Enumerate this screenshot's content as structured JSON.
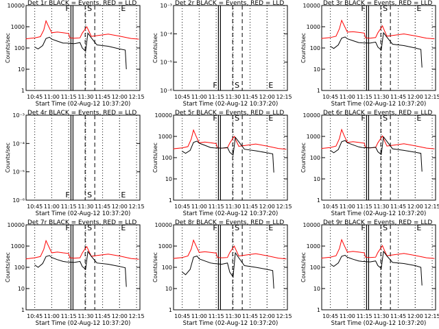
{
  "chart_data": [
    {
      "type": "line",
      "title": "Det 1r BLACK = Events, RED = LLD",
      "xlabel": "Start Time (02-Aug-12 10:37:20)",
      "ylabel": "Counts/sec",
      "x_ticks": [
        "10:45",
        "11:00",
        "11:15",
        "11:30",
        "11:45",
        "12:00",
        "12:15"
      ],
      "y_scale": "log",
      "ylim": [
        1,
        10000
      ],
      "y_ticks": [
        "1",
        "10",
        "100",
        "1000",
        "10000"
      ],
      "markers": {
        "F": "11:17",
        "S": "11:32",
        "E": "12:00"
      },
      "series": [
        {
          "color": "#ff0000",
          "x": [
            "10:37",
            "10:45",
            "10:50",
            "10:53",
            "10:55",
            "10:57",
            "11:00",
            "11:05",
            "11:10",
            "11:15",
            "11:16",
            "11:20",
            "11:25",
            "11:27",
            "11:29",
            "11:31",
            "11:33",
            "11:35",
            "11:40",
            "11:50",
            "12:00",
            "12:10",
            "12:17"
          ],
          "values": [
            270,
            300,
            340,
            700,
            1900,
            1100,
            520,
            560,
            520,
            480,
            300,
            290,
            300,
            500,
            700,
            1000,
            600,
            350,
            380,
            450,
            360,
            280,
            260
          ]
        },
        {
          "color": "#000000",
          "x": [
            "10:45",
            "10:48",
            "10:52",
            "10:55",
            "10:58",
            "11:00",
            "11:05",
            "11:10",
            "11:13",
            "11:20",
            "11:25",
            "11:27",
            "11:30",
            "11:32",
            "11:35",
            "11:40",
            "11:50",
            "12:00",
            "12:05",
            "12:06"
          ],
          "values": [
            110,
            90,
            130,
            280,
            320,
            260,
            210,
            170,
            170,
            160,
            180,
            100,
            70,
            500,
            300,
            140,
            120,
            90,
            80,
            10
          ]
        }
      ]
    },
    {
      "type": "line",
      "title": "Det 2r BLACK = Events, RED = LLD",
      "xlabel": "Start Time (02-Aug-12 10:37:20)",
      "ylabel": "Counts/sec",
      "x_ticks": [
        "10:45",
        "11:00",
        "11:15",
        "11:30",
        "11:45",
        "12:00",
        "12:15"
      ],
      "y_scale": "log",
      "ylim": [
        1e-06,
        0.001
      ],
      "y_ticks": [
        "10⁻⁶",
        "10⁻⁵",
        "10⁻⁴",
        "10⁻³"
      ],
      "markers": {
        "F": "11:17",
        "S": "11:32",
        "E": "12:00"
      },
      "series": []
    },
    {
      "type": "line",
      "title": "Det 3r BLACK = Events, RED = LLD",
      "xlabel": "Start Time (02-Aug-12 10:37:20)",
      "ylabel": "Counts/sec",
      "x_ticks": [
        "10:45",
        "11:00",
        "11:15",
        "11:30",
        "11:45",
        "12:00",
        "12:15"
      ],
      "y_scale": "log",
      "ylim": [
        1,
        10000
      ],
      "y_ticks": [
        "1",
        "10",
        "100",
        "1000",
        "10000"
      ],
      "markers": {
        "F": "11:17",
        "S": "11:32",
        "E": "12:00"
      },
      "series": [
        {
          "color": "#ff0000",
          "x": [
            "10:37",
            "10:45",
            "10:50",
            "10:53",
            "10:55",
            "10:57",
            "11:00",
            "11:05",
            "11:10",
            "11:15",
            "11:16",
            "11:20",
            "11:25",
            "11:27",
            "11:29",
            "11:31",
            "11:33",
            "11:35",
            "11:40",
            "11:50",
            "12:00",
            "12:10",
            "12:17"
          ],
          "values": [
            280,
            310,
            360,
            800,
            2000,
            1200,
            560,
            580,
            540,
            500,
            300,
            290,
            310,
            520,
            750,
            1100,
            620,
            360,
            390,
            460,
            370,
            290,
            270
          ]
        },
        {
          "color": "#000000",
          "x": [
            "10:45",
            "10:48",
            "10:52",
            "10:55",
            "10:58",
            "11:00",
            "11:05",
            "11:10",
            "11:13",
            "11:20",
            "11:25",
            "11:27",
            "11:30",
            "11:32",
            "11:35",
            "11:40",
            "11:50",
            "12:00",
            "12:05",
            "12:06"
          ],
          "values": [
            120,
            95,
            140,
            290,
            330,
            270,
            220,
            180,
            175,
            170,
            190,
            110,
            80,
            520,
            320,
            150,
            130,
            100,
            85,
            12
          ]
        }
      ]
    },
    {
      "type": "line",
      "title": "Det 4r BLACK = Events, RED = LLD",
      "xlabel": "Start Time (02-Aug-12 10:37:20)",
      "ylabel": "Counts/sec",
      "x_ticks": [
        "10:45",
        "11:00",
        "11:15",
        "11:30",
        "11:45",
        "12:00",
        "12:15"
      ],
      "y_scale": "log",
      "ylim": [
        1e-06,
        0.001
      ],
      "y_ticks": [
        "10⁻⁶",
        "10⁻⁵",
        "10⁻⁴",
        "10⁻³"
      ],
      "markers": {
        "F": "11:17",
        "S": "11:32",
        "E": "12:00"
      },
      "series": []
    },
    {
      "type": "line",
      "title": "Det 5r BLACK = Events, RED = LLD",
      "xlabel": "Start Time (02-Aug-12 10:37:20)",
      "ylabel": "Counts/sec",
      "x_ticks": [
        "10:45",
        "11:00",
        "11:15",
        "11:30",
        "11:45",
        "12:00",
        "12:15"
      ],
      "y_scale": "log",
      "ylim": [
        1,
        10000
      ],
      "y_ticks": [
        "1",
        "10",
        "100",
        "1000",
        "10000"
      ],
      "markers": {
        "F": "11:17",
        "S": "11:32",
        "E": "12:00"
      },
      "series": [
        {
          "color": "#ff0000",
          "x": [
            "10:37",
            "10:45",
            "10:50",
            "10:53",
            "10:55",
            "10:57",
            "11:00",
            "11:05",
            "11:10",
            "11:15",
            "11:16",
            "11:20",
            "11:25",
            "11:27",
            "11:29",
            "11:31",
            "11:33",
            "11:35",
            "11:40",
            "11:50",
            "12:00",
            "12:10",
            "12:17"
          ],
          "values": [
            260,
            290,
            330,
            750,
            2000,
            1100,
            500,
            540,
            500,
            460,
            290,
            280,
            290,
            480,
            700,
            1000,
            580,
            340,
            370,
            440,
            350,
            270,
            250
          ]
        },
        {
          "color": "#000000",
          "x": [
            "10:45",
            "10:48",
            "10:52",
            "10:55",
            "10:58",
            "11:00",
            "11:05",
            "11:10",
            "11:13",
            "11:20",
            "11:25",
            "11:27",
            "11:30",
            "11:32",
            "11:35",
            "11:40",
            "11:50",
            "12:00",
            "12:05",
            "12:06"
          ],
          "values": [
            200,
            160,
            220,
            520,
            600,
            480,
            380,
            300,
            290,
            280,
            300,
            180,
            130,
            900,
            560,
            250,
            210,
            170,
            150,
            20
          ]
        }
      ]
    },
    {
      "type": "line",
      "title": "Det 6r BLACK = Events, RED = LLD",
      "xlabel": "Start Time (02-Aug-12 10:37:20)",
      "ylabel": "Counts/sec",
      "x_ticks": [
        "10:45",
        "11:00",
        "11:15",
        "11:30",
        "11:45",
        "12:00",
        "12:15"
      ],
      "y_scale": "log",
      "ylim": [
        1,
        10000
      ],
      "y_ticks": [
        "1",
        "10",
        "100",
        "1000",
        "10000"
      ],
      "markers": {
        "F": "11:17",
        "S": "11:32",
        "E": "12:00"
      },
      "series": [
        {
          "color": "#ff0000",
          "x": [
            "10:37",
            "10:45",
            "10:50",
            "10:53",
            "10:55",
            "10:57",
            "11:00",
            "11:05",
            "11:10",
            "11:15",
            "11:16",
            "11:20",
            "11:25",
            "11:27",
            "11:29",
            "11:31",
            "11:33",
            "11:35",
            "11:40",
            "11:50",
            "12:00",
            "12:10",
            "12:17"
          ],
          "values": [
            270,
            300,
            350,
            780,
            2100,
            1150,
            520,
            560,
            520,
            480,
            300,
            290,
            300,
            500,
            720,
            1050,
            600,
            350,
            380,
            450,
            360,
            280,
            260
          ]
        },
        {
          "color": "#000000",
          "x": [
            "10:45",
            "10:48",
            "10:52",
            "10:55",
            "10:58",
            "11:00",
            "11:05",
            "11:10",
            "11:13",
            "11:20",
            "11:25",
            "11:27",
            "11:30",
            "11:32",
            "11:35",
            "11:40",
            "11:50",
            "12:00",
            "12:05",
            "12:06"
          ],
          "values": [
            220,
            170,
            240,
            560,
            640,
            500,
            400,
            320,
            300,
            290,
            310,
            190,
            140,
            950,
            580,
            260,
            220,
            180,
            160,
            22
          ]
        }
      ]
    },
    {
      "type": "line",
      "title": "Det 7r BLACK = Events, RED = LLD",
      "xlabel": "Start Time (02-Aug-12 10:37:20)",
      "ylabel": "Counts/sec",
      "x_ticks": [
        "10:45",
        "11:00",
        "11:15",
        "11:30",
        "11:45",
        "12:00",
        "12:15"
      ],
      "y_scale": "log",
      "ylim": [
        1,
        10000
      ],
      "y_ticks": [
        "1",
        "10",
        "100",
        "1000",
        "10000"
      ],
      "markers": {
        "F": "11:17",
        "S": "11:32",
        "E": "12:00"
      },
      "series": [
        {
          "color": "#ff0000",
          "x": [
            "10:37",
            "10:45",
            "10:50",
            "10:53",
            "10:55",
            "10:57",
            "11:00",
            "11:05",
            "11:10",
            "11:15",
            "11:16",
            "11:20",
            "11:25",
            "11:27",
            "11:29",
            "11:31",
            "11:33",
            "11:35",
            "11:40",
            "11:50",
            "12:00",
            "12:10",
            "12:17"
          ],
          "values": [
            250,
            280,
            320,
            700,
            1800,
            1050,
            480,
            520,
            480,
            450,
            280,
            270,
            280,
            470,
            680,
            950,
            560,
            330,
            360,
            420,
            340,
            260,
            240
          ]
        },
        {
          "color": "#000000",
          "x": [
            "10:45",
            "10:48",
            "10:52",
            "10:55",
            "10:58",
            "11:00",
            "11:05",
            "11:10",
            "11:13",
            "11:20",
            "11:25",
            "11:27",
            "11:30",
            "11:32",
            "11:35",
            "11:40",
            "11:50",
            "12:00",
            "12:05",
            "12:06"
          ],
          "values": [
            130,
            100,
            150,
            320,
            360,
            290,
            230,
            190,
            180,
            170,
            190,
            110,
            80,
            550,
            330,
            160,
            140,
            110,
            95,
            12
          ]
        }
      ]
    },
    {
      "type": "line",
      "title": "Det 8r BLACK = Events, RED = LLD",
      "xlabel": "Start Time (02-Aug-12 10:37:20)",
      "ylabel": "Counts/sec",
      "x_ticks": [
        "10:45",
        "11:00",
        "11:15",
        "11:30",
        "11:45",
        "12:00",
        "12:15"
      ],
      "y_scale": "log",
      "ylim": [
        1,
        10000
      ],
      "y_ticks": [
        "1",
        "10",
        "100",
        "1000",
        "10000"
      ],
      "markers": {
        "F": "11:17",
        "S": "11:32",
        "E": "12:00"
      },
      "series": [
        {
          "color": "#ff0000",
          "x": [
            "10:37",
            "10:45",
            "10:50",
            "10:53",
            "10:55",
            "10:57",
            "11:00",
            "11:05",
            "11:10",
            "11:15",
            "11:16",
            "11:20",
            "11:25",
            "11:27",
            "11:29",
            "11:31",
            "11:33",
            "11:35",
            "11:40",
            "11:50",
            "12:00",
            "12:10",
            "12:17"
          ],
          "values": [
            260,
            290,
            340,
            720,
            1900,
            1100,
            500,
            540,
            500,
            470,
            290,
            280,
            290,
            490,
            700,
            1000,
            580,
            340,
            370,
            440,
            350,
            270,
            250
          ]
        },
        {
          "color": "#000000",
          "x": [
            "10:45",
            "10:48",
            "10:52",
            "10:55",
            "10:58",
            "11:00",
            "11:05",
            "11:10",
            "11:13",
            "11:20",
            "11:25",
            "11:27",
            "11:30",
            "11:32",
            "11:35",
            "11:40",
            "11:50",
            "12:00",
            "12:05",
            "12:06"
          ],
          "values": [
            60,
            45,
            80,
            300,
            340,
            250,
            200,
            160,
            150,
            140,
            160,
            60,
            35,
            480,
            280,
            120,
            100,
            80,
            70,
            10
          ]
        }
      ]
    },
    {
      "type": "line",
      "title": "Det 9r BLACK = Events, RED = LLD",
      "xlabel": "Start Time (02-Aug-12 10:37:20)",
      "ylabel": "Counts/sec",
      "x_ticks": [
        "10:45",
        "11:00",
        "11:15",
        "11:30",
        "11:45",
        "12:00",
        "12:15"
      ],
      "y_scale": "log",
      "ylim": [
        1,
        10000
      ],
      "y_ticks": [
        "1",
        "10",
        "100",
        "1000",
        "10000"
      ],
      "markers": {
        "F": "11:17",
        "S": "11:32",
        "E": "12:00"
      },
      "series": [
        {
          "color": "#ff0000",
          "x": [
            "10:37",
            "10:45",
            "10:50",
            "10:53",
            "10:55",
            "10:57",
            "11:00",
            "11:05",
            "11:10",
            "11:15",
            "11:16",
            "11:20",
            "11:25",
            "11:27",
            "11:29",
            "11:31",
            "11:33",
            "11:35",
            "11:40",
            "11:50",
            "12:00",
            "12:10",
            "12:17"
          ],
          "values": [
            270,
            300,
            350,
            760,
            2000,
            1150,
            520,
            560,
            520,
            480,
            300,
            290,
            300,
            500,
            720,
            1050,
            600,
            350,
            380,
            450,
            360,
            280,
            260
          ]
        },
        {
          "color": "#000000",
          "x": [
            "10:45",
            "10:48",
            "10:52",
            "10:55",
            "10:58",
            "11:00",
            "11:05",
            "11:10",
            "11:13",
            "11:20",
            "11:25",
            "11:27",
            "11:30",
            "11:32",
            "11:35",
            "11:40",
            "11:50",
            "12:00",
            "12:05",
            "12:06"
          ],
          "values": [
            140,
            110,
            160,
            330,
            370,
            300,
            240,
            200,
            190,
            180,
            200,
            120,
            90,
            560,
            340,
            170,
            150,
            120,
            100,
            14
          ]
        }
      ]
    }
  ]
}
